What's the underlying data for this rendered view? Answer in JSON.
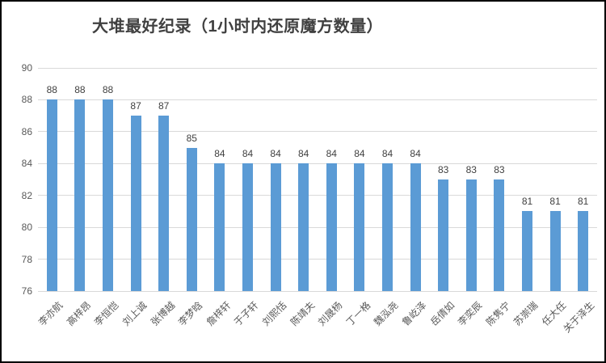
{
  "chart_data": {
    "type": "bar",
    "title": "大堆最好纪录（1小时内还原魔方数量）",
    "categories": [
      "李亦航",
      "高梓昂",
      "李恒恺",
      "刘上诚",
      "张博越",
      "李梦晗",
      "詹梓轩",
      "于子轩",
      "刘熙恬",
      "陈靖夫",
      "刘晟杨",
      "丁一格",
      "魏泓尧",
      "鲁屹泽",
      "岳倩如",
      "李奕辰",
      "陈隽宁",
      "苏崇瑞",
      "任大任",
      "关于泽生"
    ],
    "values": [
      88,
      88,
      88,
      87,
      87,
      85,
      84,
      84,
      84,
      84,
      84,
      84,
      84,
      84,
      83,
      83,
      83,
      81,
      81,
      81
    ],
    "data_labels": [
      88,
      88,
      88,
      87,
      87,
      85,
      84,
      84,
      84,
      84,
      84,
      84,
      84,
      84,
      83,
      83,
      83,
      81,
      81,
      81
    ],
    "xlabel": "",
    "ylabel": "",
    "ylim": [
      76,
      90
    ],
    "yticks": [
      76,
      78,
      80,
      82,
      84,
      86,
      88,
      90
    ],
    "grid": true,
    "legend_position": "none",
    "x_label_rotation_deg": 45,
    "bar_color": "#5b9bd5",
    "gridline_color": "#d9d9d9",
    "axis_text_color": "#595959",
    "value_label_color": "#404040",
    "title_color": "#404040",
    "background_color": "#ffffff",
    "frame_border_color": "#000000"
  }
}
